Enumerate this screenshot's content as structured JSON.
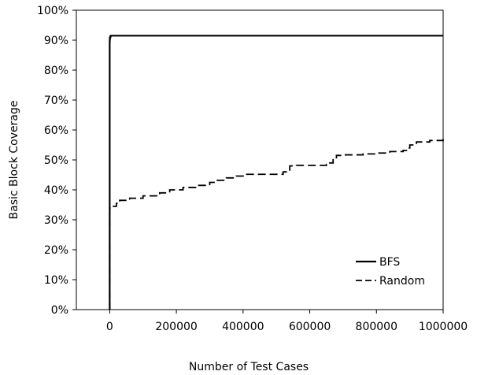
{
  "chart_data": {
    "type": "line",
    "title": "",
    "xlabel": "Number of Test Cases",
    "ylabel": "Basic Block Coverage",
    "xlim": [
      -100000,
      1000000
    ],
    "ylim": [
      0,
      100
    ],
    "x_ticks": [
      0,
      200000,
      400000,
      600000,
      800000,
      1000000
    ],
    "x_tick_labels": [
      "0",
      "200000",
      "400000",
      "600000",
      "800000",
      "1000000"
    ],
    "y_ticks": [
      0,
      10,
      20,
      30,
      40,
      50,
      60,
      70,
      80,
      90,
      100
    ],
    "y_tick_labels": [
      "0%",
      "10%",
      "20%",
      "30%",
      "40%",
      "50%",
      "60%",
      "70%",
      "80%",
      "90%",
      "100%"
    ],
    "grid": false,
    "legend_position": "bottom-right",
    "series": [
      {
        "name": "BFS",
        "style": "solid",
        "color": "#000000",
        "x": [
          0,
          0,
          0,
          0,
          300,
          700,
          1500,
          3000,
          1000000
        ],
        "y": [
          0,
          17,
          45,
          89.5,
          90.3,
          90.8,
          91.2,
          91.5,
          91.5
        ]
      },
      {
        "name": "Random",
        "style": "dashed",
        "color": "#000000",
        "x": [
          0,
          0,
          0,
          1000,
          20000,
          30000,
          60000,
          100000,
          150000,
          180000,
          220000,
          260000,
          300000,
          320000,
          350000,
          380000,
          400000,
          420000,
          520000,
          540000,
          560000,
          650000,
          660000,
          670000,
          680000,
          700000,
          760000,
          800000,
          840000,
          880000,
          890000,
          900000,
          920000,
          960000,
          1000000
        ],
        "y": [
          0,
          17,
          34,
          34.5,
          35.5,
          36.5,
          37.2,
          38,
          39,
          40,
          40.8,
          41.5,
          42.5,
          43.2,
          44,
          44.6,
          45.2,
          45.2,
          46,
          48,
          48.2,
          48.5,
          49,
          50.5,
          51.5,
          51.7,
          52,
          52.3,
          52.8,
          53.2,
          54,
          55,
          56,
          56.5,
          57
        ]
      }
    ]
  }
}
